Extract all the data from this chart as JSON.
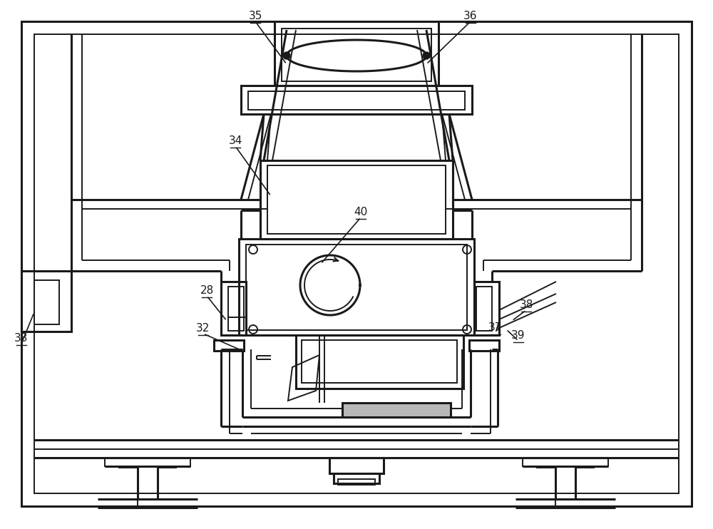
{
  "line_color": "#1a1a1a",
  "bg_color": "#ffffff",
  "lw": 2.2,
  "lw2": 1.4,
  "fs": 11,
  "gray": "#b8b8b8"
}
